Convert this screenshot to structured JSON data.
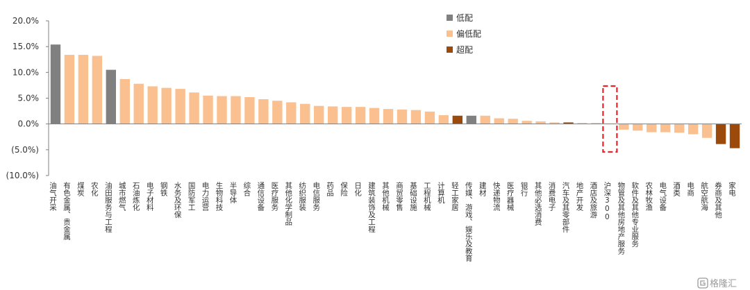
{
  "chart_data": {
    "type": "bar",
    "title": "",
    "xlabel": "",
    "ylabel": "",
    "ylim": [
      -10,
      20
    ],
    "y_ticks": [
      -10,
      -5,
      0,
      5,
      10,
      15,
      20
    ],
    "y_tick_labels": [
      "(10.0%)",
      "(5.0%)",
      "0.0%",
      "5.0%",
      "10.0%",
      "15.0%",
      "20.0%"
    ],
    "grid": false,
    "legend": {
      "placement": "top-center",
      "items": [
        {
          "key": "low",
          "label": "低配",
          "color": "#808080"
        },
        {
          "key": "mid",
          "label": "偏低配",
          "color": "#FAC090"
        },
        {
          "key": "over",
          "label": "超配",
          "color": "#9C4A0C"
        }
      ]
    },
    "highlight": {
      "category": "沪深300",
      "style": "red-dashed-box",
      "color": "#E8232A"
    },
    "categories": [
      "油气开采",
      "有色金属、贵金属",
      "煤炭",
      "农化",
      "油田服务与工程",
      "城市燃气",
      "石油炼化",
      "电子材料",
      "钢铁",
      "水务及环保",
      "国防军工",
      "电力运营",
      "生物科技",
      "半导体",
      "综合",
      "通信设备",
      "医疗服务",
      "其他化学制品",
      "纺织服装",
      "电信服务",
      "药品",
      "保险",
      "日化",
      "建筑装饰及工程",
      "其他机械",
      "商贸零售",
      "基础设施",
      "工程机械",
      "计算机",
      "轻工家居",
      "传媒、游戏、娱乐及教育",
      "建材",
      "快递物流",
      "医疗器械",
      "银行",
      "其他必选消费",
      "消费电子",
      "汽车及其零部件",
      "地产开发",
      "酒店及旅游",
      "沪深300",
      "物管及其他房地产服务",
      "软件及其他专业服务",
      "农林牧渔",
      "电气设备",
      "酒类",
      "电商",
      "航空航海",
      "券商及其他",
      "家电"
    ],
    "values": [
      15.4,
      13.4,
      13.4,
      13.2,
      10.5,
      8.7,
      7.8,
      7.3,
      7.0,
      6.8,
      6.1,
      5.5,
      5.4,
      5.4,
      5.2,
      4.8,
      4.5,
      4.2,
      3.9,
      3.5,
      3.4,
      3.3,
      3.3,
      3.1,
      2.9,
      2.8,
      2.7,
      2.4,
      1.7,
      1.6,
      1.6,
      1.6,
      1.1,
      1.0,
      0.6,
      0.5,
      0.3,
      0.3,
      0.2,
      0.2,
      0.1,
      -1.1,
      -1.3,
      -1.6,
      -1.6,
      -1.7,
      -2.0,
      -2.7,
      -3.9,
      -4.7
    ],
    "groups": [
      "low",
      "mid",
      "mid",
      "mid",
      "low",
      "mid",
      "mid",
      "mid",
      "mid",
      "mid",
      "mid",
      "mid",
      "mid",
      "mid",
      "mid",
      "mid",
      "mid",
      "mid",
      "mid",
      "mid",
      "mid",
      "mid",
      "mid",
      "mid",
      "mid",
      "mid",
      "mid",
      "mid",
      "mid",
      "over",
      "low",
      "mid",
      "mid",
      "mid",
      "mid",
      "mid",
      "mid",
      "over",
      "mid",
      "mid",
      "mid",
      "mid",
      "mid",
      "mid",
      "mid",
      "mid",
      "mid",
      "mid",
      "over",
      "over"
    ]
  },
  "watermark": {
    "icon": "gelonghui-logo-icon",
    "text": "格隆汇"
  }
}
